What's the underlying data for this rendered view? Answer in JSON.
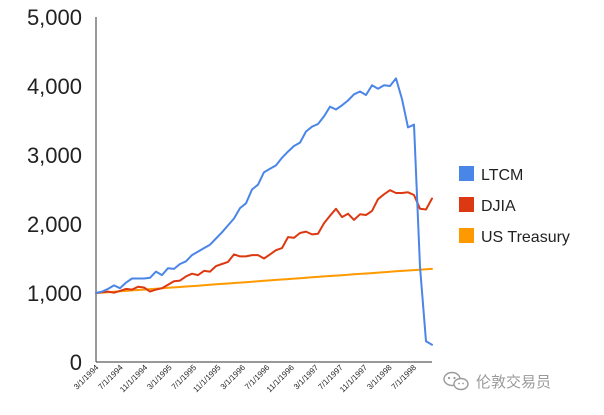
{
  "chart_data": {
    "type": "line",
    "title": "",
    "xlabel": "",
    "ylabel": "",
    "ylim": [
      0,
      5000
    ],
    "yticks": [
      "0",
      "1,000",
      "2,000",
      "3,000",
      "4,000",
      "5,000"
    ],
    "yticks_values": [
      0,
      1000,
      2000,
      3000,
      4000,
      5000
    ],
    "xticks": [
      "3/1/1994",
      "7/1/1994",
      "11/1/1994",
      "3/1/1995",
      "7/1/1995",
      "11/1/1995",
      "3/1/1996",
      "7/1/1996",
      "11/1/1996",
      "3/1/1997",
      "7/1/1997",
      "11/1/1997",
      "3/1/1998",
      "7/1/1998"
    ],
    "x_start": "1994-03",
    "x_end": "1998-10",
    "grid": false,
    "legend_position": "right",
    "series": [
      {
        "name": "LTCM",
        "color": "#4a86e8",
        "values": [
          1000,
          1020,
          1060,
          1110,
          1070,
          1150,
          1210,
          1210,
          1210,
          1220,
          1310,
          1260,
          1360,
          1350,
          1420,
          1460,
          1550,
          1600,
          1650,
          1700,
          1790,
          1880,
          1980,
          2080,
          2230,
          2300,
          2500,
          2570,
          2750,
          2800,
          2850,
          2960,
          3050,
          3130,
          3180,
          3340,
          3410,
          3450,
          3560,
          3700,
          3660,
          3720,
          3790,
          3880,
          3920,
          3870,
          4010,
          3960,
          4010,
          4000,
          4110,
          3810,
          3400,
          3440,
          1380,
          300,
          250
        ]
      },
      {
        "name": "DJIA",
        "color": "#dc3912",
        "values": [
          1000,
          1010,
          1020,
          1005,
          1030,
          1060,
          1050,
          1090,
          1080,
          1020,
          1050,
          1070,
          1120,
          1170,
          1180,
          1240,
          1280,
          1260,
          1320,
          1310,
          1390,
          1420,
          1450,
          1560,
          1530,
          1530,
          1550,
          1550,
          1500,
          1560,
          1620,
          1650,
          1810,
          1800,
          1870,
          1890,
          1850,
          1860,
          2010,
          2120,
          2220,
          2100,
          2150,
          2060,
          2140,
          2130,
          2190,
          2360,
          2430,
          2490,
          2450,
          2450,
          2460,
          2420,
          2220,
          2210,
          2370
        ]
      },
      {
        "name": "US Treasury",
        "color": "#ff9900",
        "values": [
          1000,
          1006,
          1012,
          1018,
          1024,
          1031,
          1037,
          1043,
          1049,
          1056,
          1062,
          1068,
          1075,
          1081,
          1087,
          1094,
          1100,
          1106,
          1113,
          1119,
          1126,
          1132,
          1138,
          1145,
          1151,
          1157,
          1164,
          1170,
          1177,
          1183,
          1190,
          1196,
          1202,
          1208,
          1215,
          1221,
          1227,
          1233,
          1240,
          1246,
          1252,
          1258,
          1265,
          1271,
          1277,
          1283,
          1289,
          1295,
          1301,
          1308,
          1314,
          1320,
          1326,
          1332,
          1338,
          1344,
          1350
        ]
      }
    ]
  },
  "watermark": {
    "text": "伦敦交易员"
  }
}
